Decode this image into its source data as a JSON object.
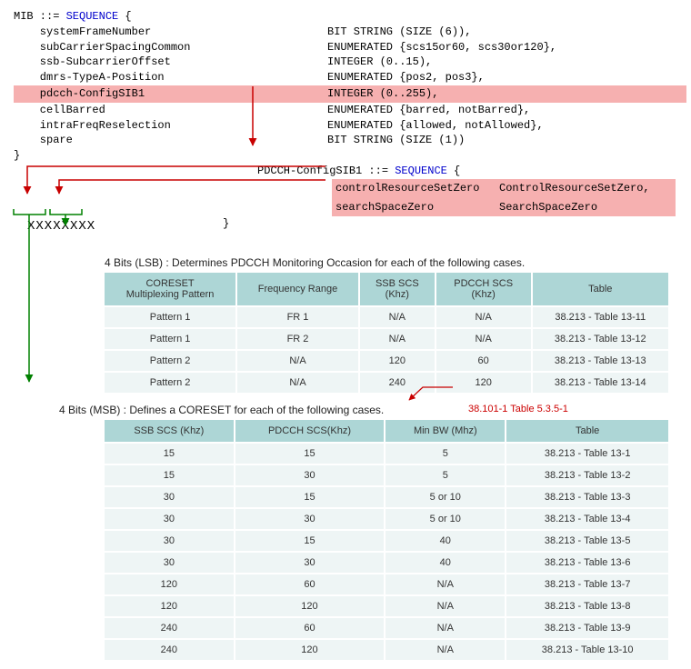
{
  "asn": {
    "mib_header": "MIB ::= ",
    "seq_kw": "SEQUENCE",
    "open": " {",
    "fields": [
      {
        "name": "systemFrameNumber",
        "type": "BIT STRING (SIZE (6)),"
      },
      {
        "name": "subCarrierSpacingCommon",
        "type": "ENUMERATED {scs15or60, scs30or120},"
      },
      {
        "name": "ssb-SubcarrierOffset",
        "type": "INTEGER (0..15),"
      },
      {
        "name": "dmrs-TypeA-Position",
        "type": "ENUMERATED {pos2, pos3},"
      },
      {
        "name": "pdcch-ConfigSIB1",
        "type": "INTEGER (0..255),",
        "hl": true
      },
      {
        "name": "cellBarred",
        "type": "ENUMERATED {barred, notBarred},"
      },
      {
        "name": "intraFreqReselection",
        "type": "ENUMERATED {allowed, notAllowed},"
      },
      {
        "name": "spare",
        "type": "BIT STRING (SIZE (1))"
      }
    ],
    "close": "}",
    "sub_header": "PDCCH-ConfigSIB1 ::= ",
    "sub_fields": [
      {
        "name": "controlResourceSetZero",
        "type": "ControlResourceSetZero,"
      },
      {
        "name": "searchSpaceZero",
        "type": "SearchSpaceZero"
      }
    ],
    "sub_close": "}"
  },
  "bits": "XXXXXXXX",
  "lsb_label": "4 Bits (LSB) : Determines PDCCH Monitoring Occasion for each of the following cases.",
  "msb_label": "4 Bits (MSB) : Defines a CORESET for each of the following cases.",
  "minbw_ref": "38.101-1 Table 5.3.5-1",
  "table_lsb": {
    "columns": [
      "CORESET\nMultiplexing Pattern",
      "Frequency Range",
      "SSB SCS\n(Khz)",
      "PDCCH SCS\n(Khz)",
      "Table"
    ],
    "rows": [
      [
        "Pattern 1",
        "FR 1",
        "N/A",
        "N/A",
        "38.213 - Table 13-11"
      ],
      [
        "Pattern 1",
        "FR 2",
        "N/A",
        "N/A",
        "38.213 - Table 13-12"
      ],
      [
        "Pattern 2",
        "N/A",
        "120",
        "60",
        "38.213 - Table 13-13"
      ],
      [
        "Pattern 2",
        "N/A",
        "240",
        "120",
        "38.213 - Table 13-14"
      ]
    ]
  },
  "table_msb": {
    "columns": [
      "SSB SCS (Khz)",
      "PDCCH SCS(Khz)",
      "Min BW (Mhz)",
      "Table"
    ],
    "rows": [
      [
        "15",
        "15",
        "5",
        "38.213 - Table 13-1"
      ],
      [
        "15",
        "30",
        "5",
        "38.213 - Table 13-2"
      ],
      [
        "30",
        "15",
        "5 or 10",
        "38.213 - Table 13-3"
      ],
      [
        "30",
        "30",
        "5 or 10",
        "38.213 - Table 13-4"
      ],
      [
        "30",
        "15",
        "40",
        "38.213 - Table 13-5"
      ],
      [
        "30",
        "30",
        "40",
        "38.213 - Table 13-6"
      ],
      [
        "120",
        "60",
        "N/A",
        "38.213 - Table 13-7"
      ],
      [
        "120",
        "120",
        "N/A",
        "38.213 - Table 13-8"
      ],
      [
        "240",
        "60",
        "N/A",
        "38.213 - Table 13-9"
      ],
      [
        "240",
        "120",
        "N/A",
        "38.213 - Table 13-10"
      ]
    ]
  },
  "colors": {
    "hl": "#f6b0b0",
    "th": "#add6d6",
    "td": "#eef5f5",
    "arrow_red": "#c80000",
    "arrow_green": "#008000"
  }
}
